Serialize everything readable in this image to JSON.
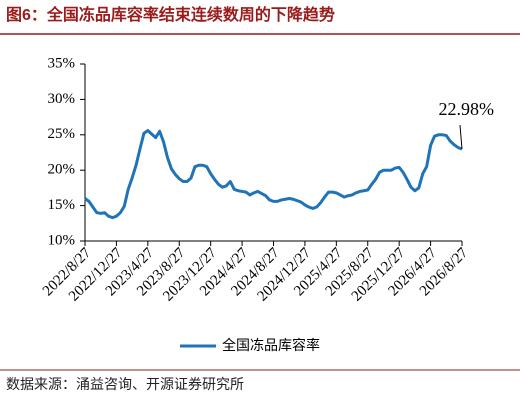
{
  "chart_data": {
    "type": "line",
    "title": "图6：全国冻品库容率结束连续数周的下降趋势",
    "source": "数据来源：涌益咨询、开源证券研究所",
    "categories": [
      "2022/8/27",
      null,
      null,
      null,
      null,
      null,
      null,
      null,
      "2022/12/27",
      null,
      null,
      null,
      null,
      null,
      null,
      null,
      "2023/4/27",
      null,
      null,
      null,
      null,
      null,
      null,
      null,
      "2023/8/27",
      null,
      null,
      null,
      null,
      null,
      null,
      null,
      "2023/12/27",
      null,
      null,
      null,
      null,
      null,
      null,
      null,
      "2024/4/27",
      null,
      null,
      null,
      null,
      null,
      null,
      null,
      "2024/8/27",
      null,
      null,
      null,
      null,
      null,
      null,
      null,
      "2024/12/27",
      null,
      null,
      null,
      null,
      null,
      null,
      null,
      "2025/4/27",
      null,
      null,
      null,
      null,
      null,
      null,
      null,
      "2025/8/27",
      null,
      null,
      null,
      null,
      null,
      null,
      null,
      "2025/12/27",
      null,
      null,
      null,
      null,
      null,
      null,
      null,
      "2026/4/27",
      null,
      null,
      null,
      null,
      null,
      null,
      null,
      "2026/8/27"
    ],
    "series": [
      {
        "name": "全国冻品库容率",
        "color": "#1f73b7",
        "values": [
          16.0,
          15.6,
          14.8,
          14.0,
          13.9,
          14.0,
          13.5,
          13.3,
          13.5,
          14.0,
          14.9,
          17.3,
          18.9,
          20.7,
          23.0,
          25.2,
          25.6,
          25.1,
          24.6,
          25.5,
          24.0,
          21.8,
          20.2,
          19.4,
          18.8,
          18.4,
          18.4,
          18.9,
          20.5,
          20.7,
          20.7,
          20.5,
          19.5,
          18.7,
          18.0,
          17.6,
          17.8,
          18.4,
          17.3,
          17.1,
          17.0,
          16.9,
          16.5,
          16.8,
          17.0,
          16.7,
          16.4,
          15.8,
          15.6,
          15.6,
          15.8,
          15.9,
          16.0,
          15.9,
          15.7,
          15.5,
          15.1,
          14.8,
          14.6,
          14.8,
          15.4,
          16.2,
          16.9,
          16.9,
          16.8,
          16.5,
          16.2,
          16.4,
          16.5,
          16.8,
          17.0,
          17.1,
          17.2,
          18.0,
          18.7,
          19.7,
          20.0,
          20.0,
          20.0,
          20.3,
          20.4,
          19.7,
          18.7,
          17.6,
          17.1,
          17.5,
          19.5,
          20.5,
          23.5,
          24.8,
          25.0,
          25.0,
          24.9,
          24.1,
          23.6,
          23.2,
          22.98
        ],
        "value_labels": [
          null,
          null,
          null,
          null,
          null,
          null,
          null,
          null,
          null,
          null,
          null,
          null,
          null,
          null,
          null,
          null,
          null,
          null,
          null,
          null,
          null,
          null,
          null,
          null,
          null,
          null,
          null,
          null,
          null,
          null,
          null,
          null,
          null,
          null,
          null,
          null,
          null,
          null,
          null,
          null,
          null,
          null,
          null,
          null,
          null,
          null,
          null,
          null,
          null,
          null,
          null,
          null,
          null,
          null,
          null,
          null,
          null,
          null,
          null,
          null,
          null,
          null,
          null,
          null,
          null,
          null,
          null,
          null,
          null,
          null,
          null,
          null,
          null,
          null,
          null,
          null,
          null,
          null,
          null,
          null,
          null,
          null,
          null,
          null,
          null,
          null,
          null,
          null,
          null,
          null,
          null,
          null,
          null,
          null,
          null,
          null,
          "22.98%"
        ]
      }
    ],
    "ylim": [
      10,
      35
    ],
    "yticks": [
      {
        "value": 10,
        "label": "10%"
      },
      {
        "value": 15,
        "label": "15%"
      },
      {
        "value": 20,
        "label": "20%"
      },
      {
        "value": 25,
        "label": "25%"
      },
      {
        "value": 30,
        "label": "30%"
      },
      {
        "value": 35,
        "label": "35%"
      }
    ],
    "legend": "bottom"
  }
}
